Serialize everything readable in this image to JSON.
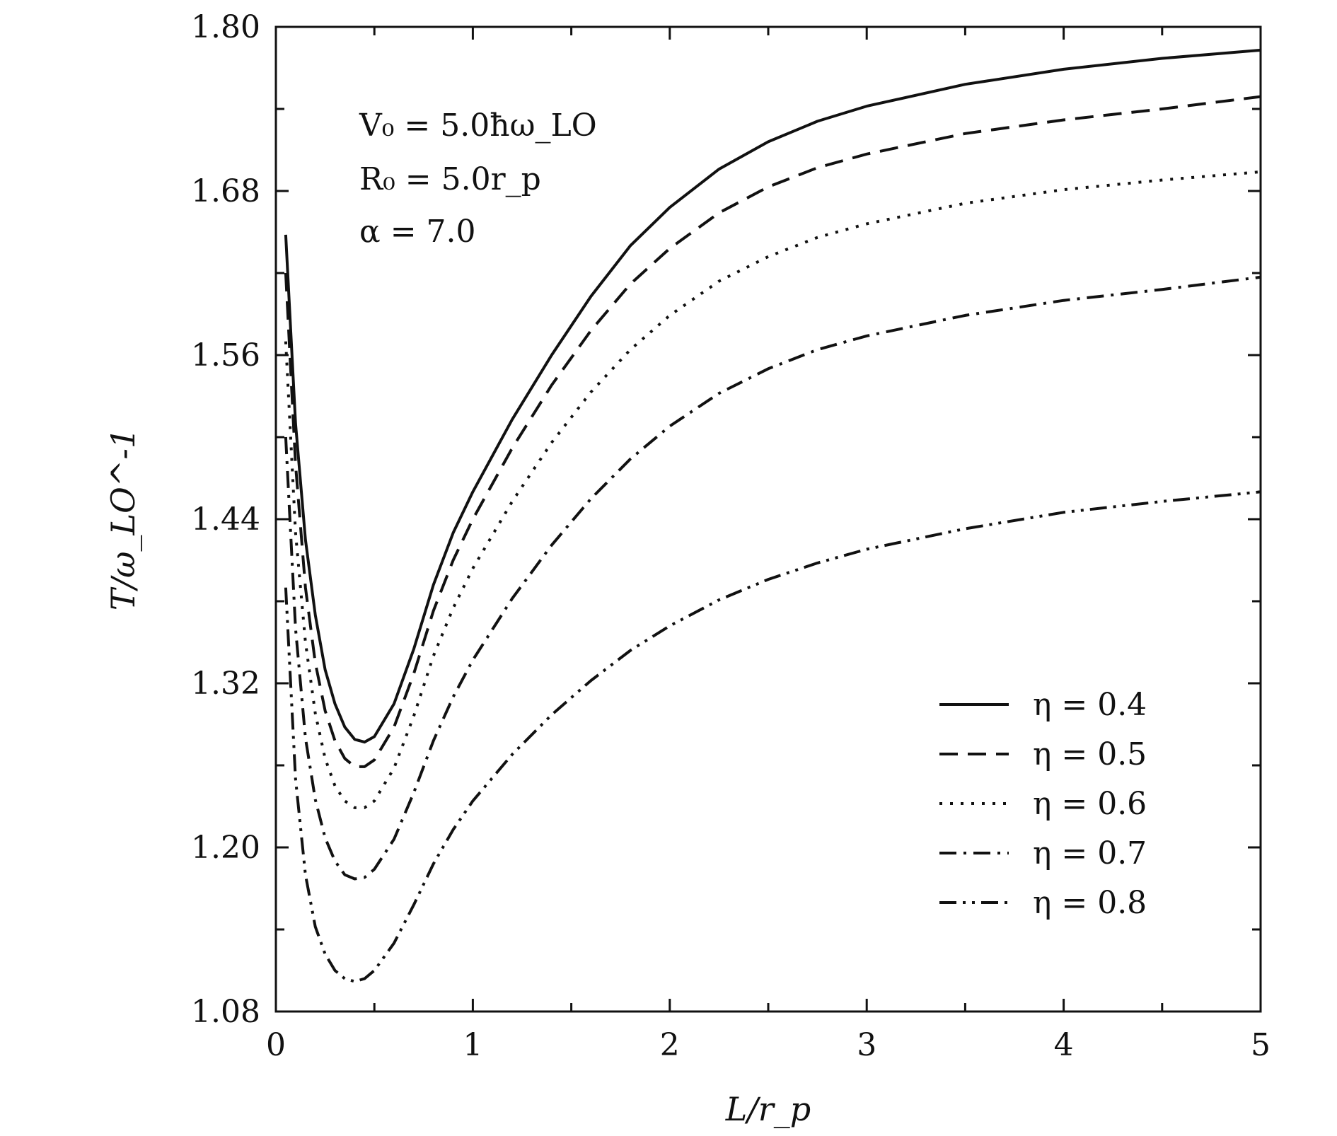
{
  "chart_data": {
    "type": "line",
    "xlabel": "L/r_p",
    "ylabel": "T/ω_LO^-1",
    "xlim": [
      0,
      5
    ],
    "ylim": [
      1.08,
      1.8
    ],
    "xticks": [
      0,
      1,
      2,
      3,
      4,
      5
    ],
    "xtick_labels": [
      "0",
      "1",
      "2",
      "3",
      "4",
      "5"
    ],
    "yticks": [
      1.08,
      1.2,
      1.32,
      1.44,
      1.56,
      1.68,
      1.8
    ],
    "ytick_labels": [
      "1.08",
      "1.20",
      "1.32",
      "1.44",
      "1.56",
      "1.68",
      "1.80"
    ],
    "grid": false,
    "legend_position": "bottom-right",
    "annotations": [
      "V₀ = 5.0ħω_LO",
      "R₀ = 5.0r_p",
      "α = 7.0"
    ],
    "series": [
      {
        "name": "η = 0.4",
        "style": "solid",
        "x": [
          0.05,
          0.1,
          0.15,
          0.2,
          0.25,
          0.3,
          0.35,
          0.4,
          0.45,
          0.5,
          0.6,
          0.7,
          0.8,
          0.9,
          1.0,
          1.2,
          1.4,
          1.6,
          1.8,
          2.0,
          2.25,
          2.5,
          2.75,
          3.0,
          3.5,
          4.0,
          4.5,
          5.0
        ],
        "y": [
          1.648,
          1.51,
          1.425,
          1.37,
          1.33,
          1.305,
          1.288,
          1.279,
          1.277,
          1.281,
          1.305,
          1.345,
          1.392,
          1.43,
          1.46,
          1.513,
          1.56,
          1.603,
          1.64,
          1.668,
          1.696,
          1.716,
          1.731,
          1.742,
          1.758,
          1.769,
          1.777,
          1.783
        ]
      },
      {
        "name": "η = 0.5",
        "style": "dashed",
        "x": [
          0.05,
          0.1,
          0.15,
          0.2,
          0.25,
          0.3,
          0.35,
          0.4,
          0.45,
          0.5,
          0.6,
          0.7,
          0.8,
          0.9,
          1.0,
          1.2,
          1.4,
          1.6,
          1.8,
          2.0,
          2.25,
          2.5,
          2.75,
          3.0,
          3.5,
          4.0,
          4.5,
          5.0
        ],
        "y": [
          1.62,
          1.48,
          1.39,
          1.335,
          1.3,
          1.278,
          1.265,
          1.259,
          1.259,
          1.264,
          1.288,
          1.327,
          1.373,
          1.41,
          1.44,
          1.492,
          1.538,
          1.578,
          1.612,
          1.638,
          1.664,
          1.683,
          1.697,
          1.707,
          1.722,
          1.732,
          1.74,
          1.749
        ]
      },
      {
        "name": "η = 0.6",
        "style": "dotted",
        "x": [
          0.05,
          0.1,
          0.15,
          0.2,
          0.25,
          0.3,
          0.35,
          0.4,
          0.45,
          0.5,
          0.6,
          0.7,
          0.8,
          0.9,
          1.0,
          1.2,
          1.4,
          1.6,
          1.8,
          2.0,
          2.25,
          2.5,
          2.75,
          3.0,
          3.5,
          4.0,
          4.5,
          5.0
        ],
        "y": [
          1.57,
          1.43,
          1.35,
          1.298,
          1.265,
          1.245,
          1.234,
          1.229,
          1.229,
          1.234,
          1.258,
          1.296,
          1.34,
          1.375,
          1.404,
          1.453,
          1.496,
          1.533,
          1.564,
          1.589,
          1.614,
          1.632,
          1.646,
          1.656,
          1.671,
          1.681,
          1.688,
          1.694
        ]
      },
      {
        "name": "η = 0.7",
        "style": "dashdot",
        "x": [
          0.05,
          0.1,
          0.15,
          0.2,
          0.25,
          0.3,
          0.35,
          0.4,
          0.45,
          0.5,
          0.6,
          0.7,
          0.8,
          0.9,
          1.0,
          1.2,
          1.4,
          1.6,
          1.8,
          2.0,
          2.25,
          2.5,
          2.75,
          3.0,
          3.5,
          4.0,
          4.5,
          5.0
        ],
        "y": [
          1.5,
          1.36,
          1.28,
          1.235,
          1.207,
          1.19,
          1.18,
          1.177,
          1.178,
          1.184,
          1.206,
          1.24,
          1.278,
          1.31,
          1.337,
          1.382,
          1.421,
          1.455,
          1.484,
          1.508,
          1.532,
          1.55,
          1.564,
          1.574,
          1.589,
          1.6,
          1.608,
          1.617
        ]
      },
      {
        "name": "η = 0.8",
        "style": "dashdotdot",
        "x": [
          0.05,
          0.1,
          0.15,
          0.2,
          0.25,
          0.3,
          0.35,
          0.4,
          0.45,
          0.5,
          0.6,
          0.7,
          0.8,
          0.9,
          1.0,
          1.2,
          1.4,
          1.6,
          1.8,
          2.0,
          2.25,
          2.5,
          2.75,
          3.0,
          3.5,
          4.0,
          4.5,
          5.0
        ],
        "y": [
          1.39,
          1.25,
          1.18,
          1.142,
          1.122,
          1.11,
          1.104,
          1.102,
          1.104,
          1.11,
          1.13,
          1.158,
          1.188,
          1.213,
          1.234,
          1.268,
          1.297,
          1.322,
          1.344,
          1.362,
          1.381,
          1.396,
          1.408,
          1.418,
          1.433,
          1.445,
          1.453,
          1.46
        ]
      }
    ]
  }
}
